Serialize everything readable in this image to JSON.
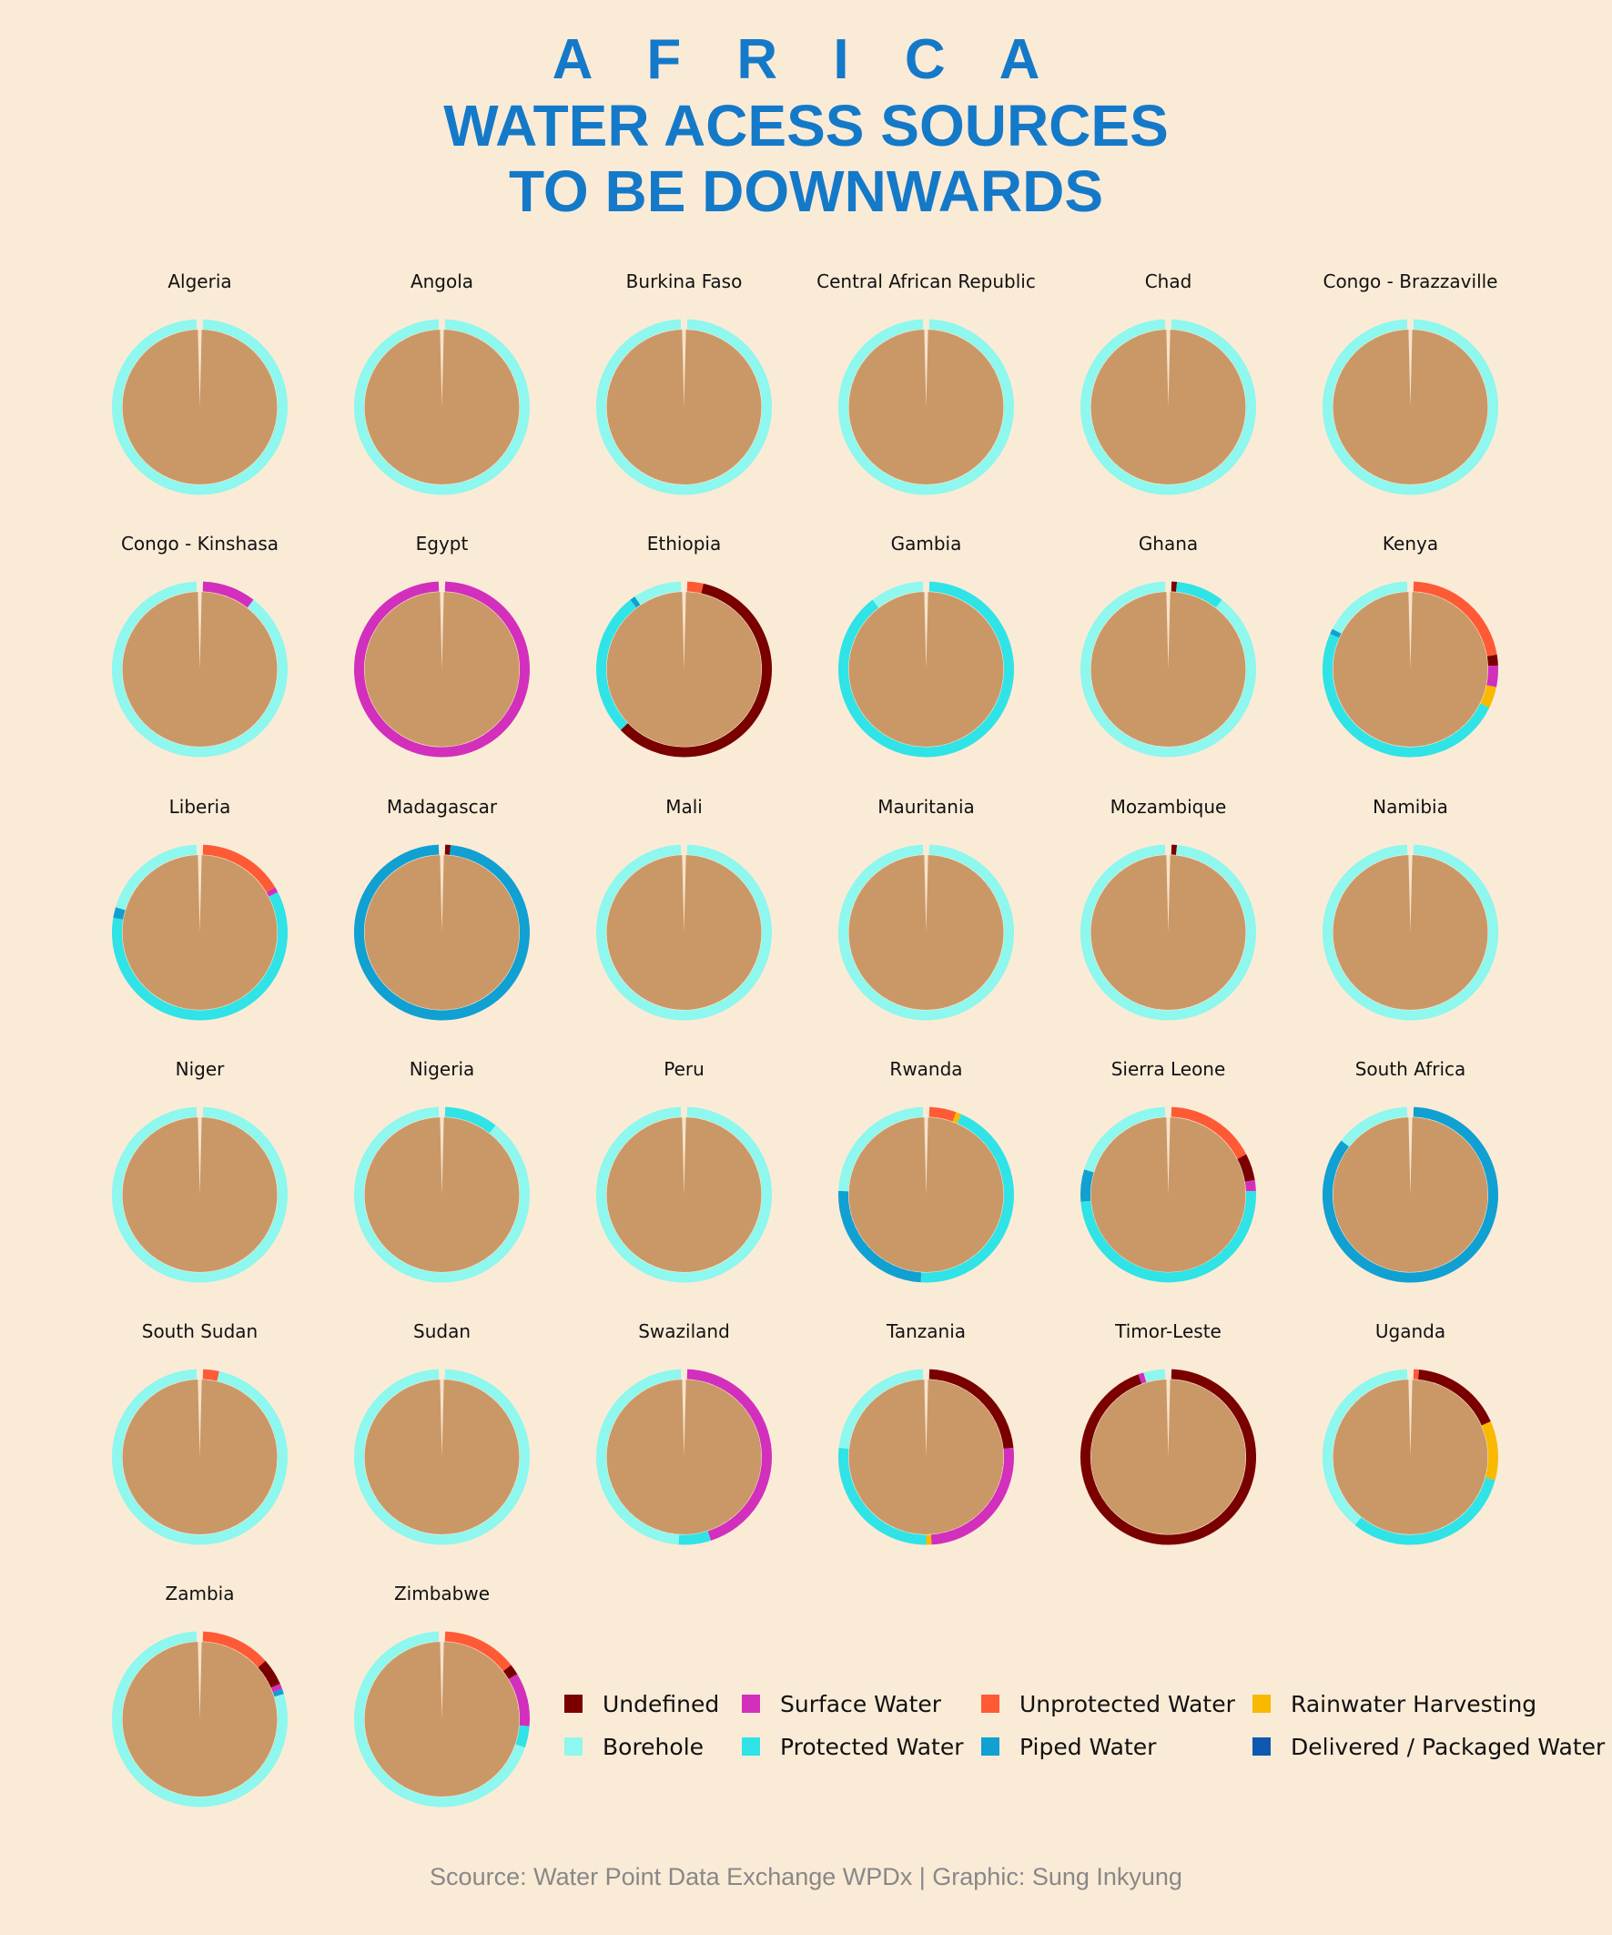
{
  "title": {
    "line1": "A F R I C A",
    "line2": "WATER ACESS SOURCES",
    "line3": "TO BE DOWNWARDS"
  },
  "caption": "Scource: Water Point Data Exchange WPDx | Graphic: Sung Inkyung",
  "colors": {
    "background": "#faebd7",
    "title": "#1479c8",
    "pie": "#ca9866",
    "Undefined": "#7a0000",
    "Surface Water": "#d22fbd",
    "Unprotected Water": "#ff5a36",
    "Rainwater Harvesting": "#f8b900",
    "Borehole": "#8ef7ee",
    "Protected Water": "#2fe3e6",
    "Piped Water": "#11a0d2",
    "Delivered / Packaged Water": "#0f58b0"
  },
  "chart_data": {
    "type": "donut-small-multiples",
    "title": "A F R I C A WATER ACESS SOURCES TO BE DOWNWARDS",
    "unit": "share of water points",
    "legend": {
      "placement": "bottom-right",
      "entries": [
        "Undefined",
        "Surface Water",
        "Unprotected Water",
        "Rainwater Harvesting",
        "Borehole",
        "Protected Water",
        "Piped Water",
        "Delivered / Packaged Water"
      ]
    },
    "countries": [
      {
        "name": "Algeria",
        "segments": [
          [
            "Borehole",
            1.0
          ]
        ]
      },
      {
        "name": "Angola",
        "segments": [
          [
            "Borehole",
            1.0
          ]
        ]
      },
      {
        "name": "Burkina Faso",
        "segments": [
          [
            "Borehole",
            1.0
          ]
        ]
      },
      {
        "name": "Central African Republic",
        "segments": [
          [
            "Borehole",
            1.0
          ]
        ]
      },
      {
        "name": "Chad",
        "segments": [
          [
            "Borehole",
            1.0
          ]
        ]
      },
      {
        "name": "Congo - Brazzaville",
        "segments": [
          [
            "Borehole",
            1.0
          ]
        ]
      },
      {
        "name": "Congo - Kinshasa",
        "segments": [
          [
            "Surface Water",
            0.1
          ],
          [
            "Borehole",
            0.9
          ]
        ]
      },
      {
        "name": "Egypt",
        "segments": [
          [
            "Surface Water",
            1.0
          ]
        ]
      },
      {
        "name": "Ethiopia",
        "segments": [
          [
            "Unprotected Water",
            0.03
          ],
          [
            "Undefined",
            0.6
          ],
          [
            "Protected Water",
            0.27
          ],
          [
            "Piped Water",
            0.01
          ],
          [
            "Borehole",
            0.09
          ]
        ]
      },
      {
        "name": "Gambia",
        "segments": [
          [
            "Protected Water",
            0.9
          ],
          [
            "Borehole",
            0.1
          ]
        ]
      },
      {
        "name": "Ghana",
        "segments": [
          [
            "Undefined",
            0.01
          ],
          [
            "Protected Water",
            0.09
          ],
          [
            "Borehole",
            0.9
          ]
        ]
      },
      {
        "name": "Kenya",
        "segments": [
          [
            "Unprotected Water",
            0.22
          ],
          [
            "Undefined",
            0.02
          ],
          [
            "Surface Water",
            0.04
          ],
          [
            "Rainwater Harvesting",
            0.04
          ],
          [
            "Protected Water",
            0.5
          ],
          [
            "Piped Water",
            0.01
          ],
          [
            "Borehole",
            0.17
          ]
        ]
      },
      {
        "name": "Liberia",
        "segments": [
          [
            "Unprotected Water",
            0.16
          ],
          [
            "Surface Water",
            0.01
          ],
          [
            "Protected Water",
            0.61
          ],
          [
            "Piped Water",
            0.02
          ],
          [
            "Borehole",
            0.2
          ]
        ]
      },
      {
        "name": "Madagascar",
        "segments": [
          [
            "Undefined",
            0.01
          ],
          [
            "Piped Water",
            0.99
          ]
        ]
      },
      {
        "name": "Mali",
        "segments": [
          [
            "Borehole",
            1.0
          ]
        ]
      },
      {
        "name": "Mauritania",
        "segments": [
          [
            "Borehole",
            1.0
          ]
        ]
      },
      {
        "name": "Mozambique",
        "segments": [
          [
            "Undefined",
            0.01
          ],
          [
            "Borehole",
            0.99
          ]
        ]
      },
      {
        "name": "Namibia",
        "segments": [
          [
            "Borehole",
            1.0
          ]
        ]
      },
      {
        "name": "Niger",
        "segments": [
          [
            "Borehole",
            1.0
          ]
        ]
      },
      {
        "name": "Nigeria",
        "segments": [
          [
            "Protected Water",
            0.1
          ],
          [
            "Borehole",
            0.9
          ]
        ]
      },
      {
        "name": "Peru",
        "segments": [
          [
            "Borehole",
            1.0
          ]
        ]
      },
      {
        "name": "Rwanda",
        "segments": [
          [
            "Unprotected Water",
            0.05
          ],
          [
            "Rainwater Harvesting",
            0.01
          ],
          [
            "Protected Water",
            0.45
          ],
          [
            "Piped Water",
            0.25
          ],
          [
            "Borehole",
            0.24
          ]
        ]
      },
      {
        "name": "Sierra Leone",
        "segments": [
          [
            "Unprotected Water",
            0.17
          ],
          [
            "Undefined",
            0.05
          ],
          [
            "Surface Water",
            0.02
          ],
          [
            "Protected Water",
            0.5
          ],
          [
            "Piped Water",
            0.06
          ],
          [
            "Borehole",
            0.2
          ]
        ]
      },
      {
        "name": "South Africa",
        "segments": [
          [
            "Piped Water",
            0.86
          ],
          [
            "Borehole",
            0.14
          ]
        ]
      },
      {
        "name": "South Sudan",
        "segments": [
          [
            "Unprotected Water",
            0.03
          ],
          [
            "Borehole",
            0.97
          ]
        ]
      },
      {
        "name": "Sudan",
        "segments": [
          [
            "Borehole",
            1.0
          ]
        ]
      },
      {
        "name": "Swaziland",
        "segments": [
          [
            "Surface Water",
            0.45
          ],
          [
            "Protected Water",
            0.06
          ],
          [
            "Borehole",
            0.49
          ]
        ]
      },
      {
        "name": "Tanzania",
        "segments": [
          [
            "Undefined",
            0.23
          ],
          [
            "Surface Water",
            0.26
          ],
          [
            "Rainwater Harvesting",
            0.01
          ],
          [
            "Protected Water",
            0.27
          ],
          [
            "Borehole",
            0.23
          ]
        ]
      },
      {
        "name": "Timor-Leste",
        "segments": [
          [
            "Undefined",
            0.95
          ],
          [
            "Surface Water",
            0.01
          ],
          [
            "Borehole",
            0.04
          ]
        ]
      },
      {
        "name": "Uganda",
        "segments": [
          [
            "Unprotected Water",
            0.01
          ],
          [
            "Undefined",
            0.17
          ],
          [
            "Rainwater Harvesting",
            0.11
          ],
          [
            "Protected Water",
            0.32
          ],
          [
            "Borehole",
            0.39
          ]
        ]
      },
      {
        "name": "Zambia",
        "segments": [
          [
            "Unprotected Water",
            0.13
          ],
          [
            "Undefined",
            0.05
          ],
          [
            "Surface Water",
            0.01
          ],
          [
            "Piped Water",
            0.01
          ],
          [
            "Borehole",
            0.8
          ]
        ]
      },
      {
        "name": "Zimbabwe",
        "segments": [
          [
            "Unprotected Water",
            0.14
          ],
          [
            "Undefined",
            0.02
          ],
          [
            "Surface Water",
            0.1
          ],
          [
            "Protected Water",
            0.04
          ],
          [
            "Borehole",
            0.7
          ]
        ]
      }
    ]
  }
}
